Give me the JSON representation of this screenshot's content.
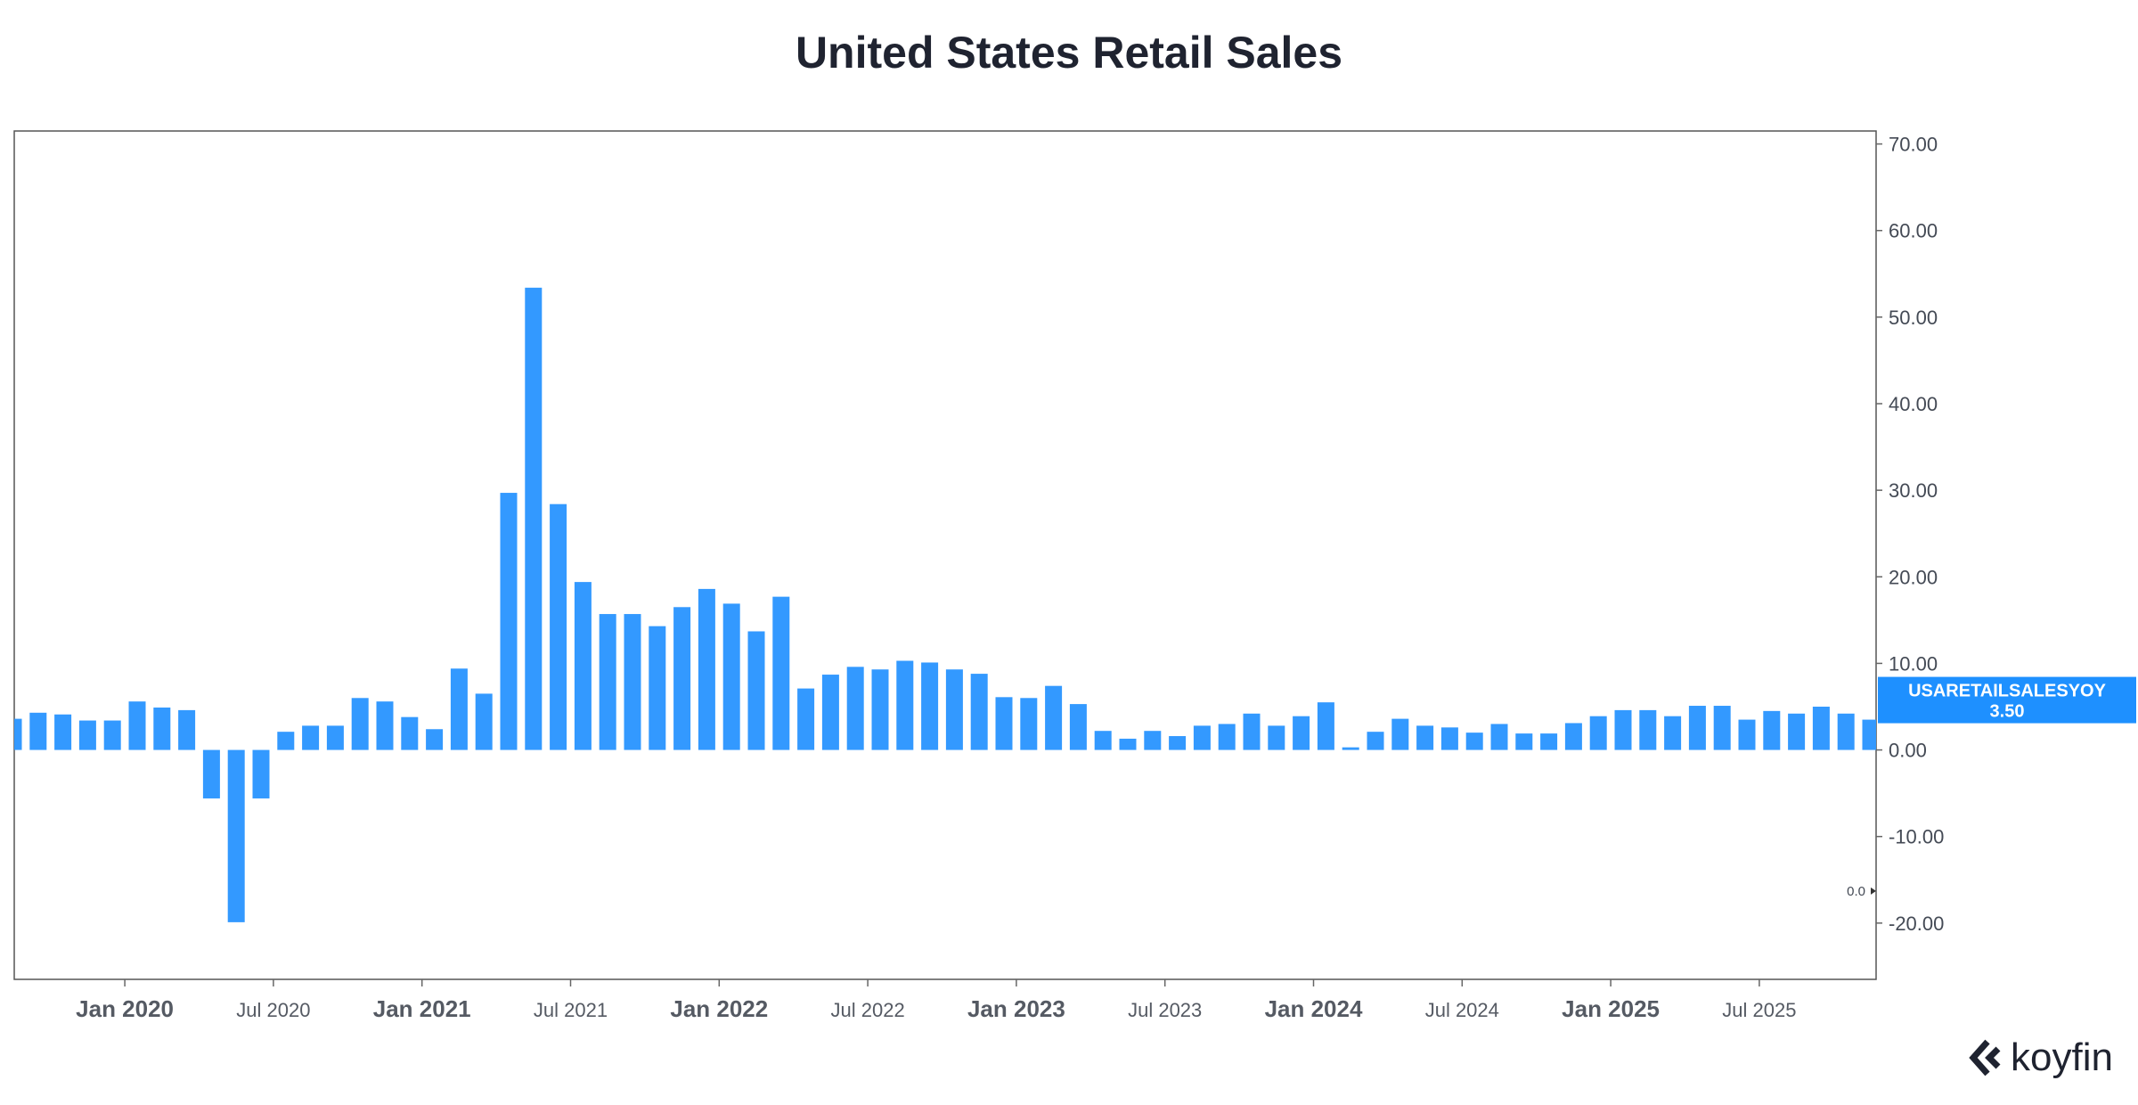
{
  "header": {
    "title": "United States Retail Sales"
  },
  "brand": {
    "name": "koyfin",
    "logo_icon": "koyfin-logo-icon"
  },
  "chart_data": {
    "type": "bar",
    "title": "United States Retail Sales",
    "series_label": "USARETAILSALESYOY",
    "last_value_label": "3.50",
    "zero_marker_label": "0.0",
    "bar_color": "#3399ff",
    "label_bg_color": "#1e90ff",
    "ylim": [
      -26.5,
      71.5
    ],
    "y_ticks": [
      70,
      60,
      50,
      40,
      30,
      20,
      10,
      0,
      -10,
      -20
    ],
    "y_tick_labels": [
      "70.00",
      "60.00",
      "50.00",
      "40.00",
      "30.00",
      "20.00",
      "10.00",
      "0.00",
      "-10.00",
      "-20.00"
    ],
    "x_ticks": [
      {
        "label": "Jan 2020",
        "major": true,
        "index": 5
      },
      {
        "label": "Jul 2020",
        "major": false,
        "index": 11
      },
      {
        "label": "Jan 2021",
        "major": true,
        "index": 17
      },
      {
        "label": "Jul 2021",
        "major": false,
        "index": 23
      },
      {
        "label": "Jan 2022",
        "major": true,
        "index": 29
      },
      {
        "label": "Jul 2022",
        "major": false,
        "index": 35
      },
      {
        "label": "Jan 2023",
        "major": true,
        "index": 41
      },
      {
        "label": "Jul 2023",
        "major": false,
        "index": 47
      },
      {
        "label": "Jan 2024",
        "major": true,
        "index": 53
      },
      {
        "label": "Jul 2024",
        "major": false,
        "index": 59
      },
      {
        "label": "Jan 2025",
        "major": true,
        "index": 65
      },
      {
        "label": "Jul 2025",
        "major": false,
        "index": 71
      }
    ],
    "categories": [
      "Aug 2019",
      "Sep 2019",
      "Oct 2019",
      "Nov 2019",
      "Dec 2019",
      "Jan 2020",
      "Feb 2020",
      "Mar 2020",
      "Apr 2020",
      "May 2020",
      "Jun 2020",
      "Jul 2020",
      "Aug 2020",
      "Sep 2020",
      "Oct 2020",
      "Nov 2020",
      "Dec 2020",
      "Jan 2021",
      "Feb 2021",
      "Mar 2021",
      "Apr 2021",
      "May 2021",
      "Jun 2021",
      "Jul 2021",
      "Aug 2021",
      "Sep 2021",
      "Oct 2021",
      "Nov 2021",
      "Dec 2021",
      "Jan 2022",
      "Feb 2022",
      "Mar 2022",
      "Apr 2022",
      "May 2022",
      "Jun 2022",
      "Jul 2022",
      "Aug 2022",
      "Sep 2022",
      "Oct 2022",
      "Nov 2022",
      "Dec 2022",
      "Jan 2023",
      "Feb 2023",
      "Mar 2023",
      "Apr 2023",
      "May 2023",
      "Jun 2023",
      "Jul 2023",
      "Aug 2023",
      "Sep 2023",
      "Oct 2023",
      "Nov 2023",
      "Dec 2023",
      "Jan 2024",
      "Feb 2024",
      "Mar 2024",
      "Apr 2024",
      "May 2024",
      "Jun 2024",
      "Jul 2024",
      "Aug 2024",
      "Sep 2024",
      "Oct 2024",
      "Nov 2024",
      "Dec 2024",
      "Jan 2025",
      "Feb 2025",
      "Mar 2025",
      "Apr 2025",
      "May 2025",
      "Jun 2025",
      "Jul 2025",
      "Aug 2025",
      "Sep 2025",
      "Oct 2025",
      "Nov 2025"
    ],
    "values": [
      3.6,
      4.3,
      4.1,
      3.4,
      3.4,
      5.6,
      4.9,
      4.6,
      -5.6,
      -19.9,
      -5.6,
      2.1,
      2.8,
      2.8,
      6.0,
      5.6,
      3.8,
      2.4,
      9.4,
      6.5,
      29.7,
      53.4,
      28.4,
      19.4,
      15.7,
      15.7,
      14.3,
      16.5,
      18.6,
      16.9,
      13.7,
      17.7,
      7.1,
      8.7,
      9.6,
      9.3,
      10.3,
      10.1,
      9.3,
      8.8,
      6.1,
      6.0,
      7.4,
      5.3,
      2.2,
      1.3,
      2.2,
      1.6,
      2.8,
      3.0,
      4.2,
      2.8,
      3.9,
      5.5,
      0.3,
      2.1,
      3.6,
      2.8,
      2.6,
      2.0,
      3.0,
      1.9,
      1.9,
      3.1,
      3.9,
      4.6,
      4.6,
      3.9,
      5.1,
      5.1,
      3.5,
      4.5,
      4.2,
      5.0,
      4.2,
      3.5
    ]
  }
}
